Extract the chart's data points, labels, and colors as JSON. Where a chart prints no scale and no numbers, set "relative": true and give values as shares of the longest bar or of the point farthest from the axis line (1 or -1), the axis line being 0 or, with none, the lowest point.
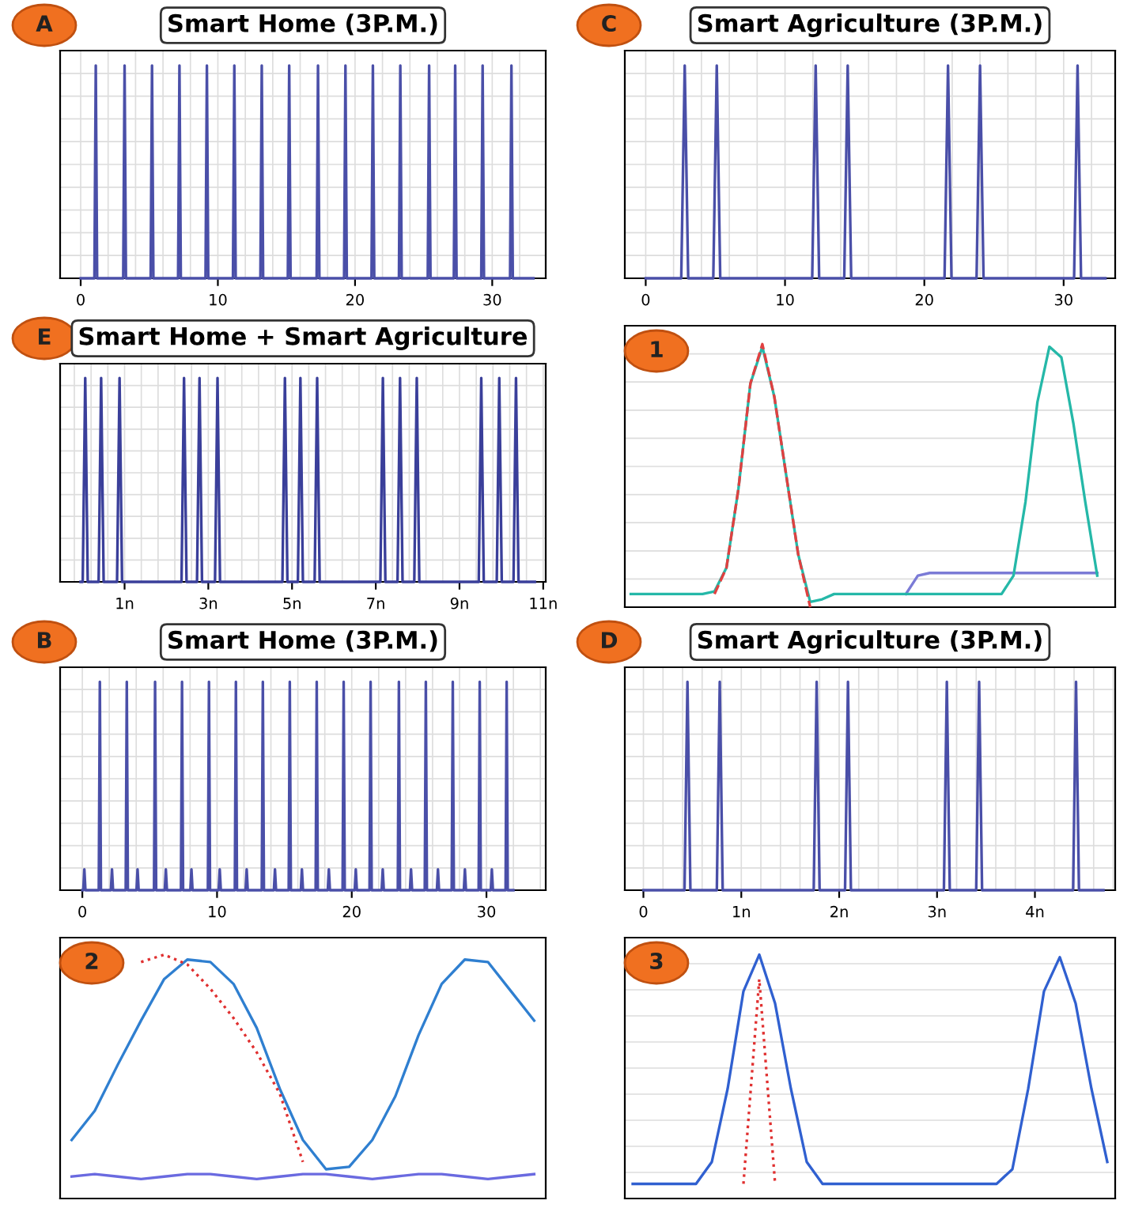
{
  "chart_data": [
    {
      "type": "line",
      "title": "Smart Home (3P.M.)",
      "annotations": [
        "A"
      ],
      "relative": true,
      "grid": true,
      "xlim": [
        -1.5,
        33.9
      ],
      "xticks": [
        0,
        10,
        20,
        30
      ],
      "series": [
        {
          "color": "#4a4fa8",
          "x": [
            0,
            1.0,
            1.1,
            1.2,
            3.1,
            3.2,
            3.3,
            5.1,
            5.2,
            5.3,
            7.1,
            7.2,
            7.3,
            9.1,
            9.2,
            9.3,
            11.1,
            11.2,
            11.3,
            13.1,
            13.2,
            13.3,
            15.1,
            15.2,
            15.3,
            17.2,
            17.3,
            17.4,
            19.2,
            19.3,
            19.4,
            21.2,
            21.3,
            21.4,
            23.2,
            23.3,
            23.4,
            25.3,
            25.4,
            25.5,
            27.2,
            27.3,
            27.4,
            29.2,
            29.3,
            29.4,
            31.3,
            31.4,
            31.5,
            33
          ],
          "values": [
            0,
            0,
            1,
            0,
            0,
            1,
            0,
            0,
            1,
            0,
            0,
            1,
            0,
            0,
            1,
            0,
            0,
            1,
            0,
            0,
            1,
            0,
            0,
            1,
            0,
            0,
            1,
            0,
            0,
            1,
            0,
            0,
            1,
            0,
            0,
            1,
            0,
            0,
            1,
            0,
            0,
            1,
            0,
            0,
            1,
            0,
            0,
            1,
            0,
            0
          ]
        }
      ]
    },
    {
      "type": "line",
      "title": "Smart Agriculture (3P.M.)",
      "annotations": [
        "C"
      ],
      "relative": true,
      "grid": true,
      "xlim": [
        -1.5,
        33.7
      ],
      "xticks": [
        0,
        10,
        20,
        30
      ],
      "series": [
        {
          "color": "#4a4fa8",
          "x": [
            0,
            2.55,
            2.8,
            3.05,
            4.85,
            5.1,
            5.35,
            11.95,
            12.2,
            12.45,
            14.25,
            14.5,
            14.75,
            21.45,
            21.7,
            21.95,
            23.75,
            24.0,
            24.25,
            30.75,
            31.0,
            31.25,
            33
          ],
          "values": [
            0,
            0,
            1,
            0,
            0,
            1,
            0,
            0,
            1,
            0,
            0,
            1,
            0,
            0,
            1,
            0,
            0,
            1,
            0,
            0,
            1,
            0,
            0
          ]
        }
      ]
    },
    {
      "type": "line",
      "title": "Smart Home + Smart Agriculture",
      "annotations": [
        "E"
      ],
      "relative": true,
      "grid": true,
      "xlim": [
        -0.54,
        11.06
      ],
      "xticks": [
        {
          "value": 1,
          "label": "1n"
        },
        {
          "value": 3,
          "label": "3n"
        },
        {
          "value": 5,
          "label": "5n"
        },
        {
          "value": 7,
          "label": "7n"
        },
        {
          "value": 9,
          "label": "9n"
        },
        {
          "value": 11,
          "label": "11n"
        }
      ],
      "series": [
        {
          "color": "#3a3f9a",
          "x": [
            -0.05,
            0.0,
            0.06,
            0.12,
            0.38,
            0.44,
            0.5,
            0.82,
            0.88,
            0.94,
            2.36,
            2.42,
            2.48,
            2.73,
            2.79,
            2.85,
            3.16,
            3.22,
            3.28,
            4.77,
            4.83,
            4.89,
            5.14,
            5.2,
            5.26,
            5.54,
            5.6,
            5.66,
            7.11,
            7.17,
            7.23,
            7.52,
            7.58,
            7.64,
            7.92,
            7.98,
            8.04,
            9.46,
            9.52,
            9.58,
            9.89,
            9.95,
            10.01,
            10.29,
            10.35,
            10.41,
            10.8
          ],
          "values": [
            0,
            0,
            1,
            0,
            0,
            1,
            0,
            0,
            1,
            0,
            0,
            1,
            0,
            0,
            1,
            0,
            0,
            1,
            0,
            0,
            1,
            0,
            0,
            1,
            0,
            0,
            1,
            0,
            0,
            1,
            0,
            0,
            1,
            0,
            0,
            1,
            0,
            0,
            1,
            0,
            0,
            1,
            0,
            0,
            1,
            0,
            0
          ]
        }
      ]
    },
    {
      "type": "line",
      "annotations": [
        "1"
      ],
      "relative": true,
      "grid": true,
      "categories": [
        null,
        null,
        null,
        null,
        null,
        null,
        null,
        null,
        null,
        null,
        null,
        null,
        null,
        null,
        null,
        null,
        null,
        null,
        null,
        null,
        null,
        null,
        null,
        null,
        null,
        null,
        null,
        null,
        null,
        null,
        null,
        null,
        null,
        null,
        null,
        null,
        null,
        null,
        null,
        null,
        null
      ],
      "series": [
        {
          "color": "#7b7bd6",
          "values": [
            null,
            null,
            null,
            null,
            null,
            null,
            null,
            null,
            null,
            null,
            null,
            null,
            null,
            null,
            null,
            null,
            null,
            null,
            null,
            null,
            null,
            null,
            null,
            0.05,
            0.12,
            0.13,
            0.13,
            0.13,
            0.13,
            0.13,
            0.13,
            0.13,
            0.13,
            0.13,
            0.13,
            0.13,
            0.13,
            0.13,
            0.13,
            0.13,
            null
          ]
        },
        {
          "color": "#25b8a8",
          "values": [
            0.05,
            0.05,
            0.05,
            0.05,
            0.05,
            0.05,
            0.05,
            0.06,
            0.15,
            0.45,
            0.85,
            0.99,
            0.8,
            0.5,
            0.2,
            0.02,
            0.03,
            0.05,
            0.05,
            0.05,
            0.05,
            0.05,
            0.05,
            0.05,
            0.05,
            0.05,
            0.05,
            0.05,
            0.05,
            0.05,
            0.05,
            0.05,
            0.12,
            0.4,
            0.78,
            0.99,
            0.95,
            0.7,
            0.4,
            0.12,
            null
          ]
        },
        {
          "color": "#e04040",
          "line_style": "dashed",
          "values": [
            null,
            null,
            null,
            null,
            null,
            null,
            null,
            0.05,
            0.15,
            0.45,
            0.85,
            1.0,
            0.8,
            0.5,
            0.2,
            0.0,
            null,
            null,
            null,
            null,
            null,
            null,
            null,
            null,
            null,
            null,
            null,
            null,
            null,
            null,
            null,
            null,
            null,
            null,
            null,
            null,
            null,
            null,
            null,
            null,
            null
          ]
        }
      ]
    },
    {
      "type": "line",
      "title": "Smart Home (3P.M.)",
      "annotations": [
        "B"
      ],
      "relative": true,
      "grid": true,
      "xlim": [
        -1.65,
        34.4
      ],
      "xticks": [
        0,
        10,
        20,
        30
      ],
      "series": [
        {
          "color": "#4a4fa8",
          "x": [
            0,
            0.07,
            0.15,
            0.23,
            1.22,
            1.3,
            1.38,
            2.12,
            2.2,
            2.28,
            3.22,
            3.3,
            3.38,
            4.02,
            4.1,
            4.18,
            5.32,
            5.4,
            5.48,
            6.12,
            6.2,
            6.28,
            7.32,
            7.4,
            7.48,
            8.02,
            8.1,
            8.18,
            9.32,
            9.4,
            9.48,
            10.12,
            10.2,
            10.28,
            11.32,
            11.4,
            11.48,
            12.12,
            12.2,
            12.28,
            13.32,
            13.4,
            13.48,
            14.22,
            14.3,
            14.38,
            15.32,
            15.4,
            15.48,
            16.22,
            16.3,
            16.38,
            17.32,
            17.4,
            17.48,
            18.22,
            18.3,
            18.38,
            19.32,
            19.4,
            19.48,
            20.22,
            20.3,
            20.38,
            21.32,
            21.4,
            21.48,
            22.22,
            22.3,
            22.38,
            23.42,
            23.5,
            23.58,
            24.32,
            24.4,
            24.48,
            25.42,
            25.5,
            25.58,
            26.32,
            26.4,
            26.48,
            27.42,
            27.5,
            27.58,
            28.32,
            28.4,
            28.48,
            29.42,
            29.5,
            29.58,
            30.32,
            30.4,
            30.48,
            31.42,
            31.5,
            31.58,
            32
          ],
          "values": [
            0,
            0,
            0.1,
            0,
            0,
            1,
            0,
            0,
            0.1,
            0,
            0,
            1,
            0,
            0,
            0.1,
            0,
            0,
            1,
            0,
            0,
            0.1,
            0,
            0,
            1,
            0,
            0,
            0.1,
            0,
            0,
            1,
            0,
            0,
            0.1,
            0,
            0,
            1,
            0,
            0,
            0.1,
            0,
            0,
            1,
            0,
            0,
            0.1,
            0,
            0,
            1,
            0,
            0,
            0.1,
            0,
            0,
            1,
            0,
            0,
            0.1,
            0,
            0,
            1,
            0,
            0,
            0.1,
            0,
            0,
            1,
            0,
            0,
            0.1,
            0,
            0,
            1,
            0,
            0,
            0.1,
            0,
            0,
            1,
            0,
            0,
            0.1,
            0,
            0,
            1,
            0,
            0,
            0.1,
            0,
            0,
            1,
            0,
            0,
            0.1,
            0,
            0,
            1,
            0,
            0
          ]
        }
      ]
    },
    {
      "type": "line",
      "title": "Smart Agriculture (3P.M.)",
      "annotations": [
        "D"
      ],
      "relative": true,
      "grid": true,
      "xlim": [
        -0.19,
        4.82
      ],
      "xticks": [
        0,
        {
          "value": 1,
          "label": "1n"
        },
        {
          "value": 2,
          "label": "2n"
        },
        {
          "value": 3,
          "label": "3n"
        },
        {
          "value": 4,
          "label": "4n"
        }
      ],
      "series": [
        {
          "color": "#4a4fa8",
          "x": [
            0,
            0.42,
            0.45,
            0.48,
            0.75,
            0.78,
            0.81,
            1.74,
            1.77,
            1.8,
            2.06,
            2.09,
            2.12,
            3.07,
            3.1,
            3.13,
            3.4,
            3.43,
            3.46,
            4.39,
            4.42,
            4.45,
            4.7
          ],
          "values": [
            0,
            0,
            1,
            0,
            0,
            1,
            0,
            0,
            1,
            0,
            0,
            1,
            0,
            0,
            1,
            0,
            0,
            1,
            0,
            0,
            1,
            0,
            0
          ]
        }
      ]
    },
    {
      "type": "line",
      "annotations": [
        "2"
      ],
      "relative": true,
      "grid": false,
      "categories": [
        null,
        null,
        null,
        null,
        null,
        null,
        null,
        null,
        null,
        null,
        null,
        null,
        null,
        null,
        null,
        null,
        null,
        null,
        null,
        null,
        null
      ],
      "series": [
        {
          "color": "#2f7fd0",
          "values": [
            0.24,
            0.36,
            0.55,
            0.73,
            0.9,
            0.98,
            0.97,
            0.88,
            0.7,
            0.45,
            0.24,
            0.12,
            0.13,
            0.24,
            0.42,
            0.67,
            0.88,
            0.98,
            0.97,
            0.85,
            0.73
          ]
        },
        {
          "color": "#6a6ae0",
          "values": [
            0.09,
            0.1,
            0.09,
            0.08,
            0.09,
            0.1,
            0.1,
            0.09,
            0.08,
            0.09,
            0.1,
            0.1,
            0.09,
            0.08,
            0.09,
            0.1,
            0.1,
            0.09,
            0.08,
            0.09,
            0.1
          ]
        },
        {
          "color": "#e03030",
          "line_style": "dotted",
          "values": [
            null,
            null,
            null,
            0.97,
            1.0,
            0.96,
            0.86,
            0.74,
            0.6,
            0.43,
            0.15,
            null,
            null,
            null,
            null,
            null,
            null,
            null,
            null,
            null,
            null
          ]
        }
      ]
    },
    {
      "type": "line",
      "annotations": [
        "3"
      ],
      "relative": true,
      "grid": true,
      "categories": [
        null,
        null,
        null,
        null,
        null,
        null,
        null,
        null,
        null,
        null,
        null,
        null,
        null,
        null,
        null,
        null,
        null,
        null,
        null,
        null,
        null,
        null,
        null,
        null,
        null,
        null,
        null,
        null,
        null,
        null,
        null
      ],
      "series": [
        {
          "color": "#3060d0",
          "values": [
            0.06,
            0.06,
            0.06,
            0.06,
            0.06,
            0.15,
            0.45,
            0.85,
            1.0,
            0.8,
            0.45,
            0.15,
            0.06,
            0.06,
            0.06,
            0.06,
            0.06,
            0.06,
            0.06,
            0.06,
            0.06,
            0.06,
            0.06,
            0.06,
            0.12,
            0.45,
            0.85,
            0.99,
            0.8,
            0.45,
            0.15
          ]
        },
        {
          "color": "#e03030",
          "line_style": "dotted",
          "values": [
            null,
            null,
            null,
            null,
            null,
            null,
            null,
            0.06,
            0.9,
            0.06,
            null,
            null,
            null,
            null,
            null,
            null,
            null,
            null,
            null,
            null,
            null,
            null,
            null,
            null,
            null,
            null,
            null,
            null,
            null,
            null,
            null
          ]
        }
      ]
    }
  ]
}
